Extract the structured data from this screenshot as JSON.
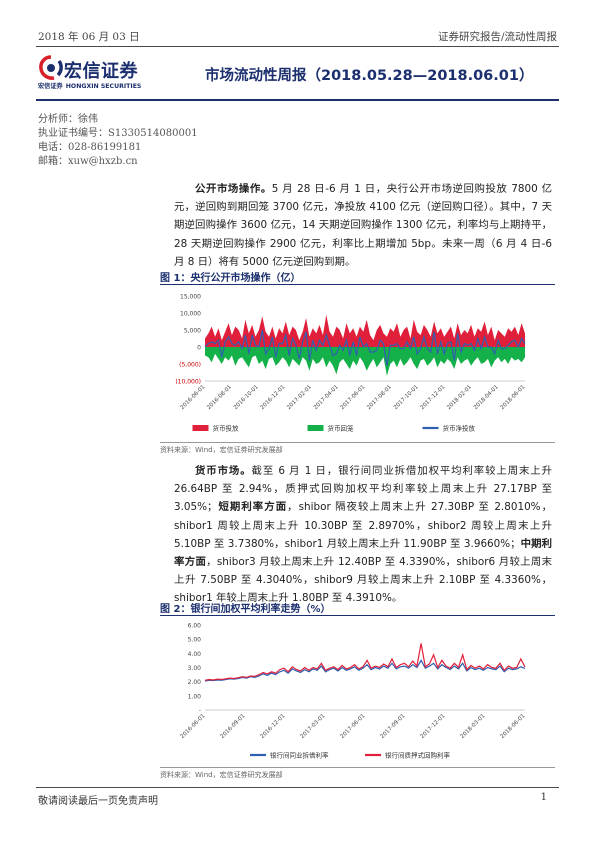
{
  "header": {
    "date": "2018 年 06 月 03 日",
    "report_type": "证券研究报告/流动性周报"
  },
  "logo": {
    "cn": "宏信证券",
    "en": "HONGXIN SECURITIES",
    "small": "宏信证券"
  },
  "title": "市场流动性周报（2018.05.28—2018.06.01）",
  "analyst": {
    "name": "分析师：徐伟",
    "license": "执业证书编号：S1330514080001",
    "phone": "电话：028-86199181",
    "email": "邮箱：xuw@hxzb.cn"
  },
  "para1": {
    "lead": "公开市场操作。",
    "body": "5 月 28 日-6 月 1 日，央行公开市场逆回购投放 7800 亿元，逆回购到期回笼 3700 亿元，净投放 4100 亿元（逆回购口径）。其中，7 天期逆回购操作 3600 亿元，14 天期逆回购操作 1300 亿元，利率均与上期持平，28 天期逆回购操作 2900 亿元，利率比上期增加 5bp。未来一周（6 月 4 日-6 月 8 日）将有 5000 亿元逆回购到期。"
  },
  "fig1": {
    "title": "图 1：央行公开市场操作（亿）",
    "source": "资料来源：Wind，宏信证券研究发展部"
  },
  "para2": {
    "lead": "货币市场。",
    "body1": "截至 6 月 1 日，银行间同业拆借加权平均利率较上周末上升 26.64BP 至 2.94%，质押式回购加权平均利率较上周末上升 27.17BP 至 3.05%；",
    "lead2": "短期利率方面",
    "body2": "，shibor 隔夜较上周末上升 27.30BP 至 2.8010%，shibor1 周较上周末上升 10.30BP 至 2.8970%，shibor2 周较上周末上升 5.10BP 至 3.7380%，shibor1 月较上周末上升 11.90BP 至 3.9660%；",
    "lead3": "中期利率方面",
    "body3": "，shibor3 月较上周末上升 12.40BP 至 4.3390%，shibor6 月较上周末上升 7.50BP 至 4.3040%，shibor9 月较上周末上升 2.10BP 至 4.3360%，shibor1 年较上周末上升 1.80BP 至 4.3910%。"
  },
  "fig2": {
    "title": "图 2：银行间加权平均利率走势（%）",
    "source": "资料来源：Wind，宏信证券研究发展部"
  },
  "footer": {
    "disclaimer": "敬请阅读最后一页免责声明",
    "page": "1"
  },
  "colors": {
    "brand": "#1c2f6e",
    "red": "#e0203a",
    "green": "#14b14a",
    "blue": "#2f5fb0"
  },
  "chart_data": [
    {
      "type": "bar",
      "yticks": [
        "15,000",
        "10,000",
        "5,000",
        "0",
        "(5,000)",
        "(10,000)"
      ],
      "ylim": [
        -10000,
        15000
      ],
      "xticks": [
        "2016-06-01",
        "2016-08-01",
        "2016-10-01",
        "2016-12-01",
        "2017-02-01",
        "2017-04-01",
        "2017-06-01",
        "2017-08-01",
        "2017-10-01",
        "2017-12-01",
        "2018-02-01",
        "2018-04-01",
        "2018-06-01"
      ],
      "series": [
        {
          "name": "货币投放",
          "color": "#e0203a",
          "kind": "area",
          "values": [
            2500,
            4000,
            6000,
            3000,
            5500,
            2000,
            4500,
            7000,
            3500,
            6000,
            5000,
            2500,
            8000,
            4000,
            6500,
            3000,
            5000,
            9000,
            4500,
            3000,
            6000,
            2500,
            5500,
            4000,
            7500,
            3500,
            6000,
            5000,
            2000,
            4500,
            8500,
            3000,
            5500,
            4000,
            6500,
            3500,
            9500,
            4500,
            3000,
            6000,
            5000,
            2500,
            7000,
            4000,
            5500,
            3000,
            6000,
            4500,
            8000,
            3500,
            2000,
            5000,
            6500,
            4000,
            3000,
            5500,
            4500,
            7000,
            3000,
            5000,
            6000,
            2500,
            8000,
            4500,
            3500,
            6500,
            5000,
            3000,
            7500,
            4000,
            5500,
            3000,
            4500,
            6000,
            2500,
            7000,
            3500,
            5000,
            4000,
            6500,
            3000,
            5500,
            4500,
            7500,
            3500,
            6000,
            2000,
            5000,
            4000,
            3000,
            5500,
            4500,
            6000,
            3500,
            7000,
            4000
          ]
        },
        {
          "name": "货币回笼",
          "color": "#14b14a",
          "kind": "area",
          "values": [
            -2500,
            -3000,
            -4500,
            -2000,
            -3500,
            -5000,
            -3000,
            -4000,
            -2500,
            -5500,
            -3500,
            -3000,
            -4500,
            -6000,
            -3000,
            -2500,
            -5000,
            -4000,
            -6500,
            -3500,
            -3000,
            -5500,
            -4500,
            -3000,
            -4000,
            -6000,
            -3500,
            -4500,
            -5500,
            -3000,
            -4000,
            -7000,
            -3500,
            -5000,
            -4500,
            -3000,
            -6000,
            -4000,
            -5500,
            -8000,
            -4500,
            -3500,
            -5000,
            -6500,
            -4000,
            -5500,
            -3000,
            -4500,
            -7000,
            -5000,
            -3500,
            -6000,
            -4500,
            -3000,
            -8500,
            -5000,
            -4000,
            -6000,
            -3500,
            -5500,
            -4500,
            -3000,
            -5000,
            -6500,
            -4000,
            -3500,
            -5500,
            -4500,
            -3000,
            -6000,
            -4000,
            -5000,
            -3500,
            -4500,
            -6500,
            -3000,
            -5000,
            -4000,
            -3500,
            -5500,
            -4000,
            -3000,
            -5000,
            -4500,
            -3500,
            -6000,
            -4000,
            -3000,
            -4500,
            -3500,
            -5000,
            -3000,
            -4000,
            -3500,
            -4500,
            -3000
          ]
        },
        {
          "name": "货币净投放",
          "color": "#2f5fb0",
          "kind": "line",
          "values": [
            0,
            1000,
            1500,
            1000,
            2000,
            -3000,
            1500,
            3000,
            1000,
            500,
            1500,
            -500,
            3500,
            -2000,
            3500,
            500,
            0,
            5000,
            -2000,
            -500,
            3000,
            -3000,
            1000,
            1000,
            3500,
            -2500,
            2500,
            500,
            -3500,
            1500,
            4500,
            -4000,
            2000,
            -1000,
            2000,
            500,
            3500,
            500,
            -2500,
            -2000,
            500,
            -1000,
            2000,
            -2500,
            1500,
            -2500,
            3000,
            0,
            1000,
            -1500,
            -1500,
            -1000,
            2000,
            1000,
            -5500,
            500,
            500,
            1000,
            -500,
            -500,
            1500,
            -500,
            3000,
            -2000,
            -500,
            3000,
            -500,
            -1500,
            4500,
            -2000,
            1500,
            -2000,
            1000,
            1500,
            -4000,
            4000,
            -1500,
            1000,
            500,
            1000,
            -1000,
            2500,
            -500,
            3000,
            0,
            0,
            -2000,
            2000,
            -500,
            -500,
            500,
            1500,
            2000,
            0,
            2500,
            1000
          ]
        }
      ]
    },
    {
      "type": "line",
      "yticks": [
        "6.00",
        "5.00",
        "4.00",
        "3.00",
        "2.00",
        "1.00",
        "-"
      ],
      "ylim": [
        0,
        6
      ],
      "xticks": [
        "2016-06-01",
        "2016-09-01",
        "2016-12-01",
        "2017-03-01",
        "2017-06-01",
        "2017-09-01",
        "2017-12-01",
        "2018-03-01",
        "2018-06-01"
      ],
      "series": [
        {
          "name": "银行间同业拆借利率",
          "color": "#2f5fb0",
          "values": [
            2.05,
            2.1,
            2.08,
            2.12,
            2.1,
            2.15,
            2.2,
            2.18,
            2.22,
            2.3,
            2.25,
            2.35,
            2.3,
            2.4,
            2.55,
            2.45,
            2.6,
            2.5,
            2.7,
            2.8,
            2.6,
            2.9,
            2.75,
            2.65,
            2.85,
            2.7,
            2.9,
            2.8,
            3.1,
            2.7,
            2.85,
            2.95,
            2.75,
            3.0,
            2.8,
            2.9,
            3.05,
            2.8,
            2.95,
            3.2,
            2.85,
            3.0,
            2.9,
            3.1,
            2.95,
            3.3,
            2.9,
            3.05,
            3.1,
            2.95,
            3.2,
            3.0,
            3.5,
            2.95,
            3.1,
            3.3,
            2.9,
            3.2,
            3.0,
            2.85,
            3.1,
            2.9,
            3.3,
            2.75,
            3.0,
            2.85,
            2.95,
            2.8,
            3.0,
            2.9,
            2.85,
            3.1,
            2.7,
            2.95,
            2.85,
            2.9,
            3.05,
            2.94
          ]
        },
        {
          "name": "银行间质押式回购利率",
          "color": "#e0203a",
          "values": [
            2.1,
            2.15,
            2.12,
            2.18,
            2.15,
            2.2,
            2.25,
            2.22,
            2.28,
            2.35,
            2.3,
            2.4,
            2.38,
            2.5,
            2.65,
            2.55,
            2.7,
            2.6,
            2.85,
            2.95,
            2.7,
            3.05,
            2.85,
            2.75,
            3.0,
            2.8,
            3.0,
            2.9,
            3.3,
            2.8,
            2.95,
            3.05,
            2.85,
            3.15,
            2.9,
            3.0,
            3.2,
            2.9,
            3.05,
            3.5,
            2.95,
            3.1,
            3.0,
            3.25,
            3.05,
            3.6,
            3.0,
            3.2,
            3.3,
            3.05,
            3.45,
            3.1,
            4.7,
            3.05,
            3.25,
            3.9,
            3.0,
            3.5,
            3.1,
            2.95,
            3.3,
            3.0,
            3.9,
            2.85,
            3.15,
            2.95,
            3.1,
            2.9,
            3.2,
            3.0,
            2.95,
            3.3,
            2.8,
            3.1,
            2.95,
            3.0,
            3.6,
            3.05
          ]
        }
      ]
    }
  ]
}
